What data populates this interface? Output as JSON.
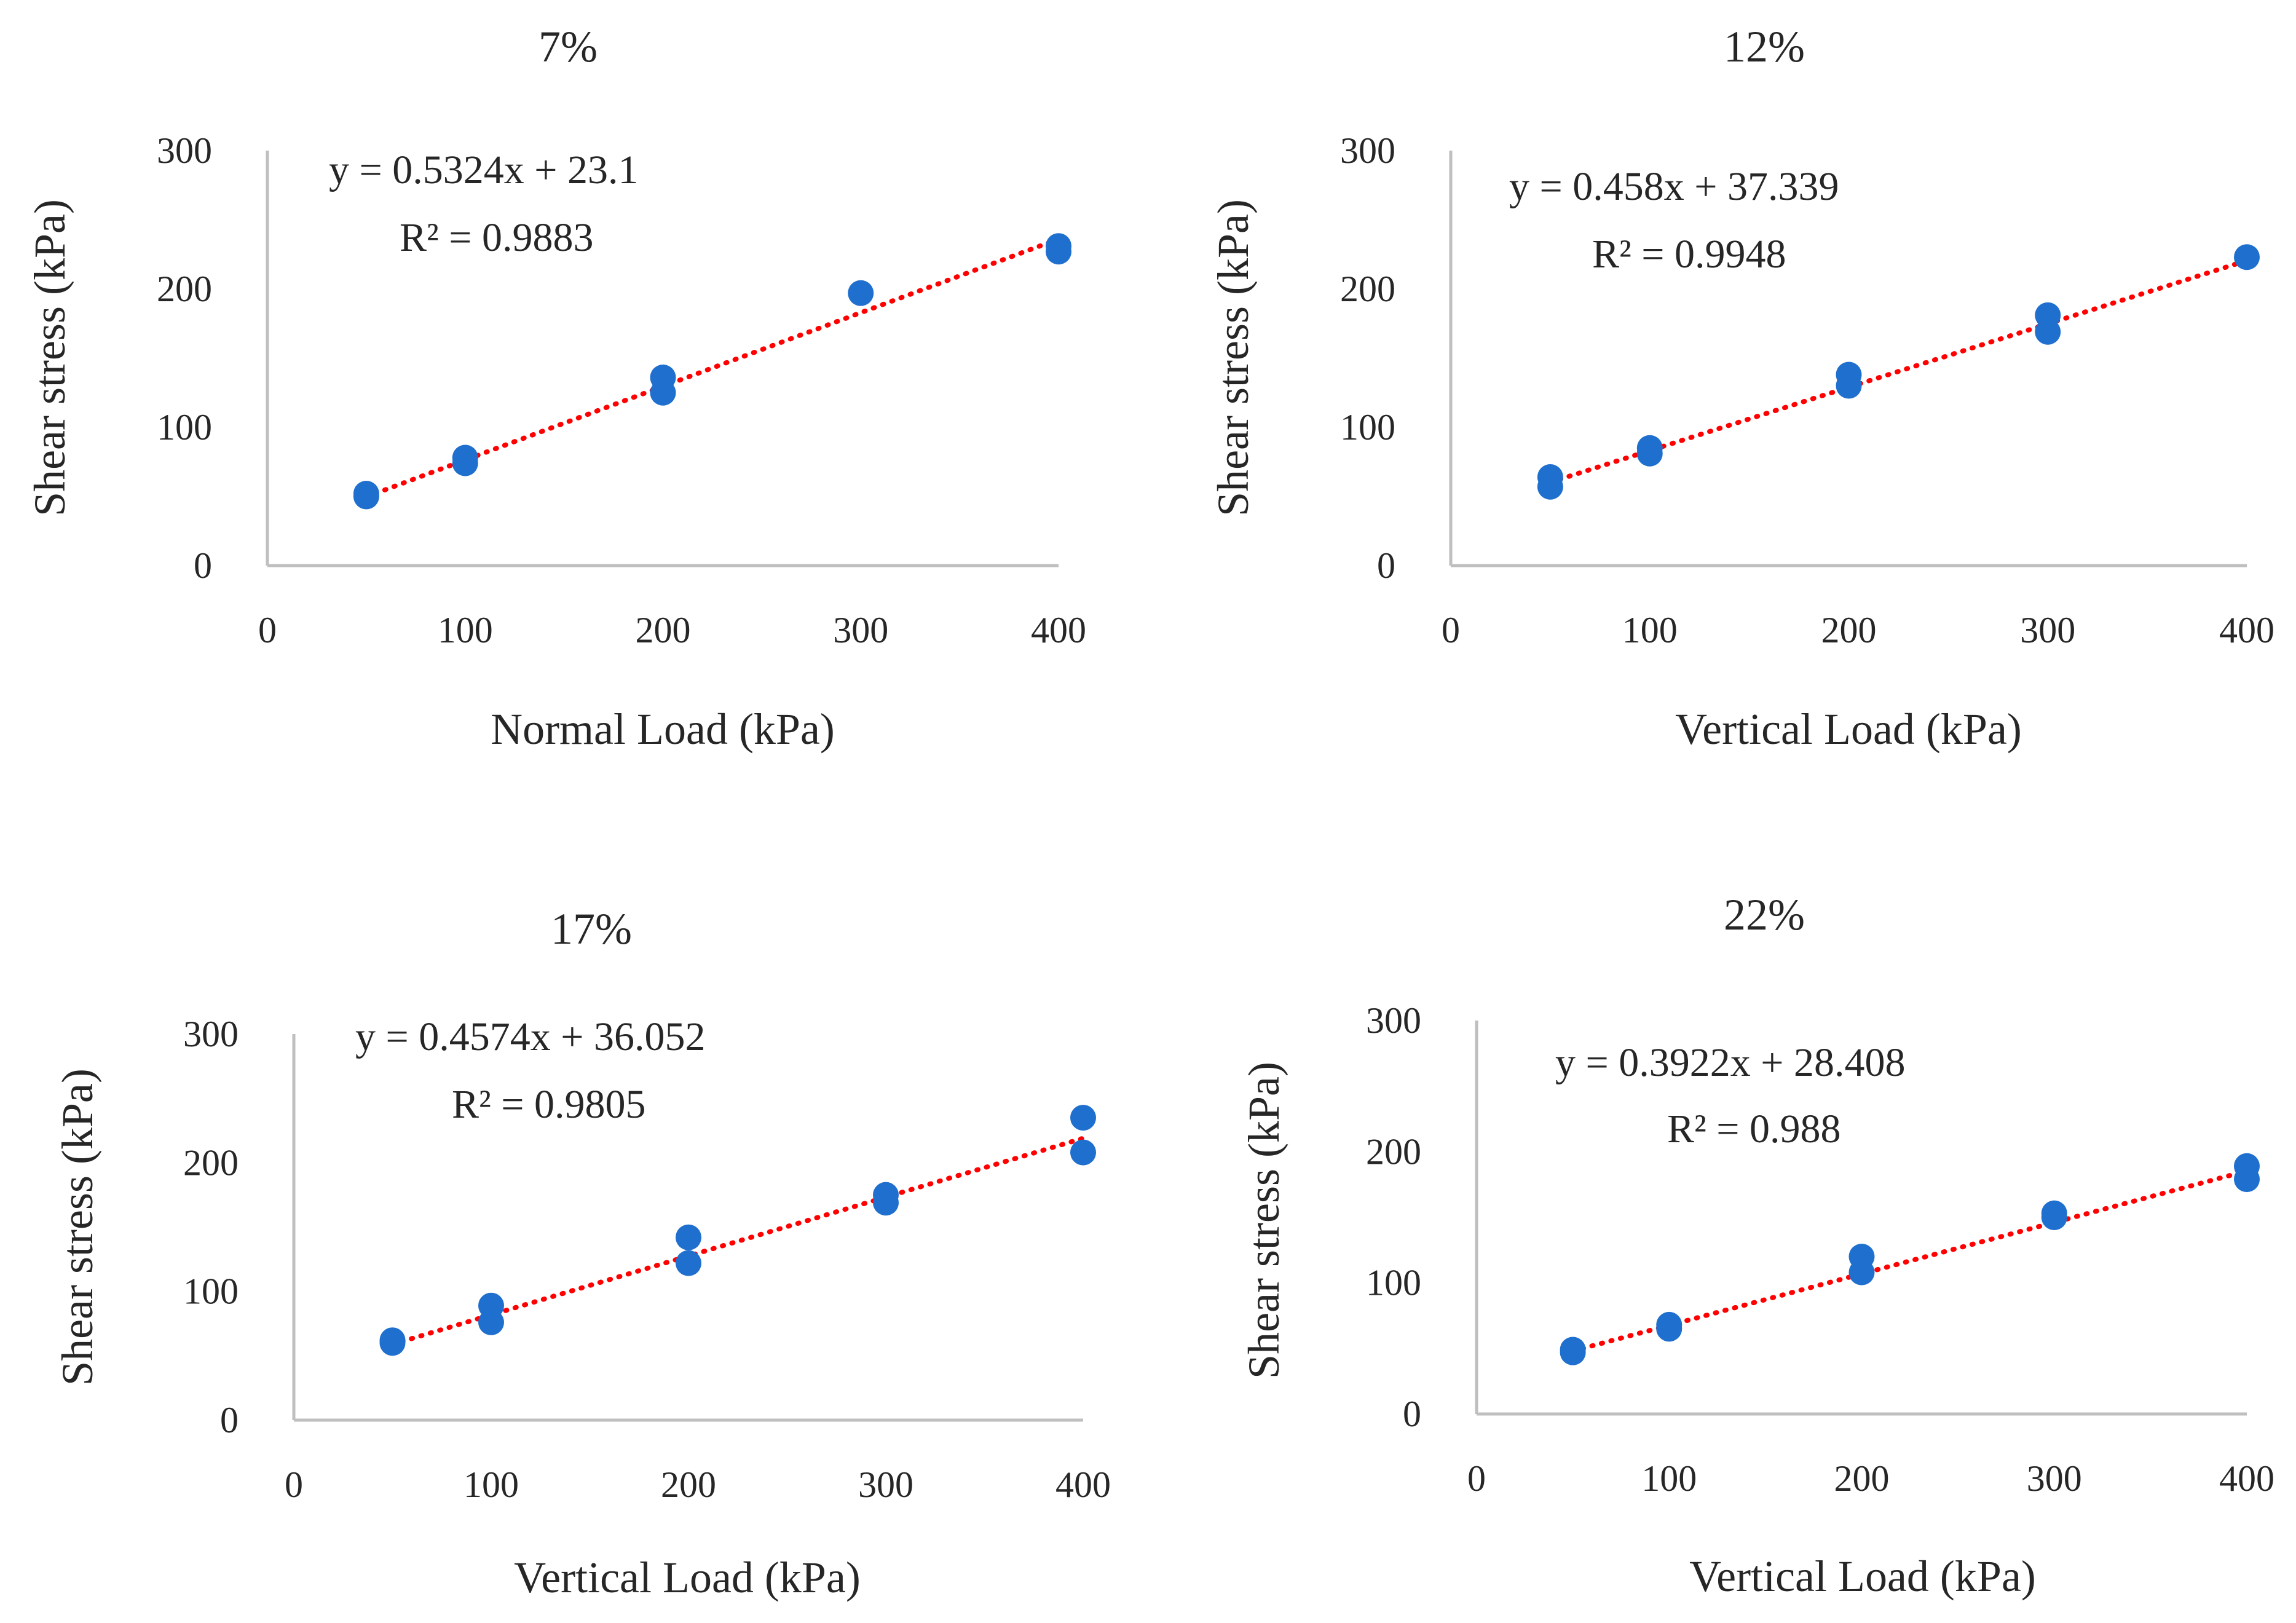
{
  "chart_data": [
    {
      "type": "scatter",
      "title": "7%",
      "xlabel": "Normal Load  (kPa)",
      "ylabel": "Shear stress (kPa)",
      "xlim": [
        0,
        400
      ],
      "ylim": [
        0,
        300
      ],
      "xticks": [
        "0",
        "100",
        "200",
        "300",
        "400"
      ],
      "yticks": [
        "0",
        "100",
        "200",
        "300"
      ],
      "points": [
        {
          "x": 50,
          "y": 50
        },
        {
          "x": 50,
          "y": 52
        },
        {
          "x": 100,
          "y": 74
        },
        {
          "x": 100,
          "y": 78
        },
        {
          "x": 200,
          "y": 125
        },
        {
          "x": 200,
          "y": 136
        },
        {
          "x": 300,
          "y": 197
        },
        {
          "x": 400,
          "y": 227
        },
        {
          "x": 400,
          "y": 231
        }
      ],
      "trendline": {
        "slope": 0.5324,
        "intercept": 23.1,
        "x_range": [
          50,
          400
        ],
        "color": "#ff0000"
      },
      "equation": "y = 0.5324x + 23.1",
      "r_squared": "R² = 0.9883",
      "marker_color": "#1f6fce"
    },
    {
      "type": "scatter",
      "title": "12%",
      "xlabel": "Vertical Load  (kPa)",
      "ylabel": "Shear stress (kPa)",
      "xlim": [
        0,
        400
      ],
      "ylim": [
        0,
        300
      ],
      "xticks": [
        "0",
        "100",
        "200",
        "300",
        "400"
      ],
      "yticks": [
        "0",
        "100",
        "200",
        "300"
      ],
      "points": [
        {
          "x": 50,
          "y": 57
        },
        {
          "x": 50,
          "y": 64
        },
        {
          "x": 100,
          "y": 81
        },
        {
          "x": 100,
          "y": 85
        },
        {
          "x": 200,
          "y": 130
        },
        {
          "x": 200,
          "y": 138
        },
        {
          "x": 300,
          "y": 169
        },
        {
          "x": 300,
          "y": 181
        },
        {
          "x": 400,
          "y": 223
        }
      ],
      "trendline": {
        "slope": 0.458,
        "intercept": 37.339,
        "x_range": [
          50,
          400
        ],
        "color": "#ff0000"
      },
      "equation": "y = 0.458x + 37.339",
      "r_squared": "R² = 0.9948",
      "marker_color": "#1f6fce"
    },
    {
      "type": "scatter",
      "title": "17%",
      "xlabel": "Vertical Load  (kPa)",
      "ylabel": "Shear stress (kPa)",
      "xlim": [
        0,
        400
      ],
      "ylim": [
        0,
        300
      ],
      "xticks": [
        "0",
        "100",
        "200",
        "300",
        "400"
      ],
      "yticks": [
        "0",
        "100",
        "200",
        "300"
      ],
      "points": [
        {
          "x": 50,
          "y": 60
        },
        {
          "x": 50,
          "y": 62
        },
        {
          "x": 100,
          "y": 76
        },
        {
          "x": 100,
          "y": 89
        },
        {
          "x": 200,
          "y": 122
        },
        {
          "x": 200,
          "y": 142
        },
        {
          "x": 300,
          "y": 169
        },
        {
          "x": 300,
          "y": 175
        },
        {
          "x": 400,
          "y": 208
        },
        {
          "x": 400,
          "y": 235
        }
      ],
      "trendline": {
        "slope": 0.4574,
        "intercept": 36.052,
        "x_range": [
          50,
          400
        ],
        "color": "#ff0000"
      },
      "equation": "y = 0.4574x + 36.052",
      "r_squared": "R² = 0.9805",
      "marker_color": "#1f6fce"
    },
    {
      "type": "scatter",
      "title": "22%",
      "xlabel": "Vertical Load  (kPa)",
      "ylabel": "Shear stress (kPa)",
      "xlim": [
        0,
        400
      ],
      "ylim": [
        0,
        300
      ],
      "xticks": [
        "0",
        "100",
        "200",
        "300",
        "400"
      ],
      "yticks": [
        "0",
        "100",
        "200",
        "300"
      ],
      "points": [
        {
          "x": 50,
          "y": 47
        },
        {
          "x": 50,
          "y": 49
        },
        {
          "x": 100,
          "y": 65
        },
        {
          "x": 100,
          "y": 68
        },
        {
          "x": 200,
          "y": 108
        },
        {
          "x": 200,
          "y": 120
        },
        {
          "x": 300,
          "y": 150
        },
        {
          "x": 300,
          "y": 153
        },
        {
          "x": 400,
          "y": 179
        },
        {
          "x": 400,
          "y": 189
        }
      ],
      "trendline": {
        "slope": 0.3922,
        "intercept": 28.408,
        "x_range": [
          50,
          400
        ],
        "color": "#ff0000"
      },
      "equation": "y = 0.3922x + 28.408",
      "r_squared": "R² = 0.988",
      "marker_color": "#1f6fce"
    }
  ]
}
